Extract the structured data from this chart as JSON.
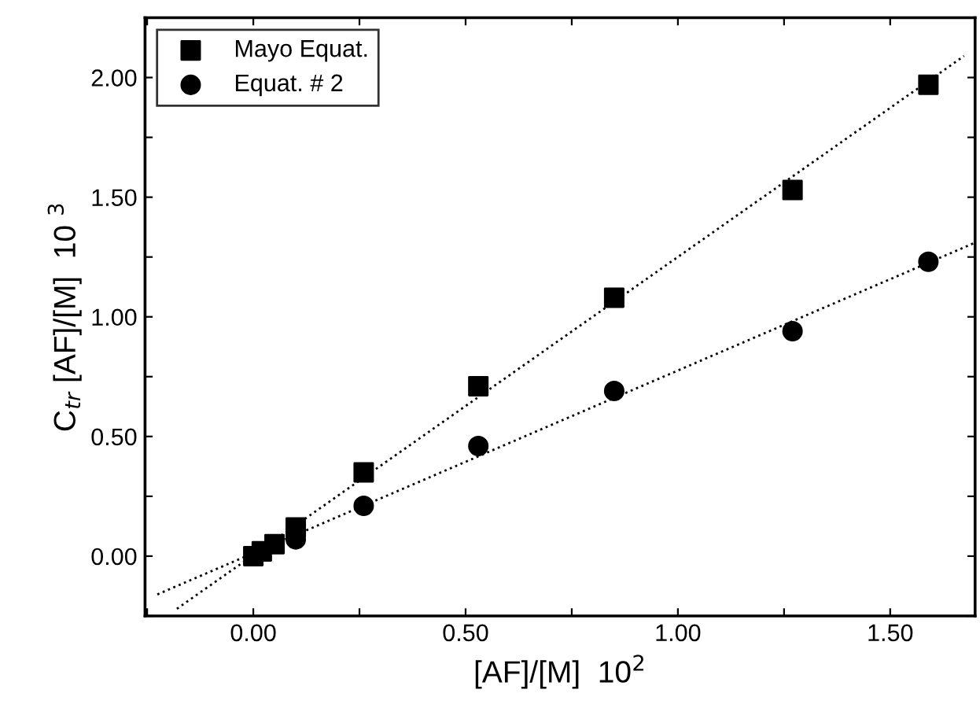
{
  "chart_data": {
    "type": "scatter",
    "xlabel": "[AF]/[M]  10$^{2}$",
    "ylabel": "C$_{tr}$ [AF]/[M]  10 $^{3}$",
    "xlim": [
      -0.255,
      1.7
    ],
    "ylim": [
      -0.25,
      2.25
    ],
    "xticks": [
      {
        "value": -0.25,
        "label": null
      },
      {
        "value": 0,
        "label": "0.00"
      },
      {
        "value": 0.25,
        "label": null
      },
      {
        "value": 0.5,
        "label": "0.50"
      },
      {
        "value": 0.75,
        "label": null
      },
      {
        "value": 1.0,
        "label": "1.00"
      },
      {
        "value": 1.25,
        "label": null
      },
      {
        "value": 1.5,
        "label": "1.50"
      }
    ],
    "yticks": [
      {
        "value": -0.25,
        "label": null
      },
      {
        "value": 0,
        "label": "0.00"
      },
      {
        "value": 0.25,
        "label": null
      },
      {
        "value": 0.5,
        "label": "0.50"
      },
      {
        "value": 0.75,
        "label": null
      },
      {
        "value": 1.0,
        "label": "1.00"
      },
      {
        "value": 1.25,
        "label": null
      },
      {
        "value": 1.5,
        "label": "1.50"
      },
      {
        "value": 1.75,
        "label": null
      },
      {
        "value": 2.0,
        "label": "2.00"
      }
    ],
    "grid": false,
    "legend": "top left",
    "series": [
      {
        "name": "Mayo Equat.",
        "color": "#000000",
        "marker": "square",
        "x": [
          0,
          0.02,
          0.05,
          0.1,
          0.26,
          0.53,
          0.85,
          1.27,
          1.59
        ],
        "values": [
          0,
          0.02,
          0.05,
          0.12,
          0.35,
          0.71,
          1.08,
          1.53,
          1.97
        ]
      },
      {
        "name": "Equat. # 2",
        "color": "#000000",
        "marker": "circle",
        "x": [
          0.1,
          0.26,
          0.53,
          0.85,
          1.27,
          1.59
        ],
        "values": [
          0.07,
          0.21,
          0.46,
          0.69,
          0.94,
          1.23
        ]
      },
      {
        "type": "line",
        "color": "#000000",
        "line_style": "dotted",
        "marker": "none",
        "x": [
          -0.18,
          1.674
        ],
        "values": [
          -0.22,
          2.09
        ]
      },
      {
        "type": "line",
        "color": "#000000",
        "line_style": "dotted",
        "marker": "none",
        "x": [
          -0.226,
          1.7
        ],
        "values": [
          -0.16,
          1.31
        ]
      }
    ]
  }
}
